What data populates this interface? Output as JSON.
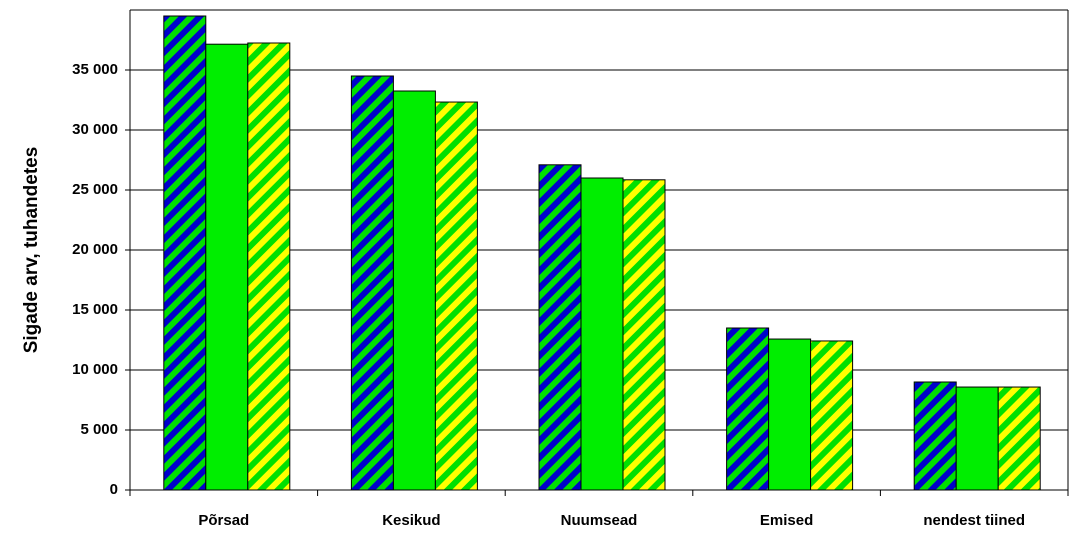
{
  "chart_data": {
    "type": "bar",
    "y_label": "Sigade arv, tuhandetes",
    "categories": [
      "Põrsad",
      "Kesikud",
      "Nuumsead",
      "Emised",
      "nendest tiined"
    ],
    "series": [
      {
        "color": "#0000cc",
        "hatch_color": "#00e000",
        "values": [
          39500,
          34500,
          27100,
          13500,
          9000
        ]
      },
      {
        "color": "#00ee00",
        "values": [
          37150,
          33250,
          26000,
          12580,
          8580
        ]
      },
      {
        "color": "#ffff00",
        "hatch_color": "#00e000",
        "values": [
          37250,
          32330,
          25850,
          12420,
          8580
        ]
      }
    ],
    "ylim": [
      0,
      40000
    ],
    "yticks": [
      0,
      {
        "value": 5000,
        "label": "5 000"
      },
      {
        "value": 10000,
        "label": "10 000"
      },
      {
        "value": 15000,
        "label": "15 000"
      },
      {
        "value": 20000,
        "label": "20 000"
      },
      {
        "value": 25000,
        "label": "25 000"
      },
      {
        "value": 30000,
        "label": "30 000"
      },
      {
        "value": 35000,
        "label": "35 000"
      }
    ],
    "grid": true
  }
}
